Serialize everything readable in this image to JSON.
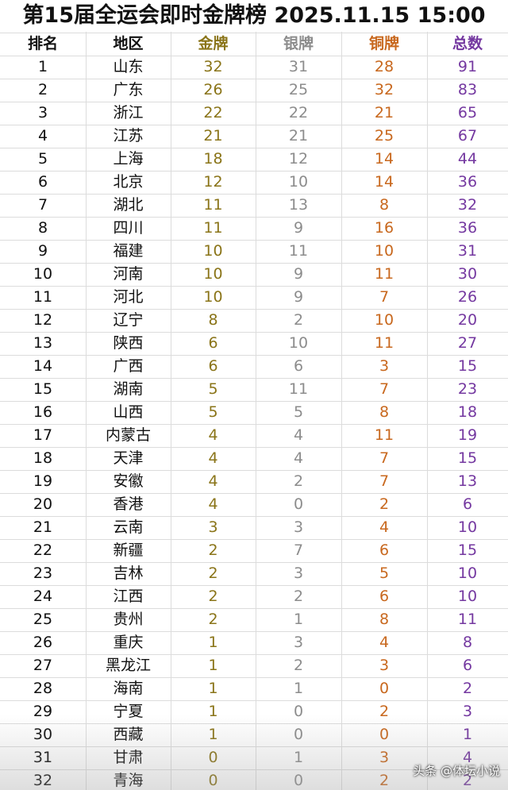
{
  "title": "第15届全运会即时金牌榜 2025.11.15 15:00",
  "table": {
    "headers": [
      "排名",
      "地区",
      "金牌",
      "银牌",
      "铜牌",
      "总数"
    ],
    "rows": [
      [
        1,
        "山东",
        32,
        31,
        28,
        91
      ],
      [
        2,
        "广东",
        26,
        25,
        32,
        83
      ],
      [
        3,
        "浙江",
        22,
        22,
        21,
        65
      ],
      [
        4,
        "江苏",
        21,
        21,
        25,
        67
      ],
      [
        5,
        "上海",
        18,
        12,
        14,
        44
      ],
      [
        6,
        "北京",
        12,
        10,
        14,
        36
      ],
      [
        7,
        "湖北",
        11,
        13,
        8,
        32
      ],
      [
        8,
        "四川",
        11,
        9,
        16,
        36
      ],
      [
        9,
        "福建",
        10,
        11,
        10,
        31
      ],
      [
        10,
        "河南",
        10,
        9,
        11,
        30
      ],
      [
        11,
        "河北",
        10,
        9,
        7,
        26
      ],
      [
        12,
        "辽宁",
        8,
        2,
        10,
        20
      ],
      [
        13,
        "陕西",
        6,
        10,
        11,
        27
      ],
      [
        14,
        "广西",
        6,
        6,
        3,
        15
      ],
      [
        15,
        "湖南",
        5,
        11,
        7,
        23
      ],
      [
        16,
        "山西",
        5,
        5,
        8,
        18
      ],
      [
        17,
        "内蒙古",
        4,
        4,
        11,
        19
      ],
      [
        18,
        "天津",
        4,
        4,
        7,
        15
      ],
      [
        19,
        "安徽",
        4,
        2,
        7,
        13
      ],
      [
        20,
        "香港",
        4,
        0,
        2,
        6
      ],
      [
        21,
        "云南",
        3,
        3,
        4,
        10
      ],
      [
        22,
        "新疆",
        2,
        7,
        6,
        15
      ],
      [
        23,
        "吉林",
        2,
        3,
        5,
        10
      ],
      [
        24,
        "江西",
        2,
        2,
        6,
        10
      ],
      [
        25,
        "贵州",
        2,
        1,
        8,
        11
      ],
      [
        26,
        "重庆",
        1,
        3,
        4,
        8
      ],
      [
        27,
        "黑龙江",
        1,
        2,
        3,
        6
      ],
      [
        28,
        "海南",
        1,
        1,
        0,
        2
      ],
      [
        29,
        "宁夏",
        1,
        0,
        2,
        3
      ],
      [
        30,
        "西藏",
        1,
        0,
        0,
        1
      ],
      [
        31,
        "甘肃",
        0,
        1,
        3,
        4
      ],
      [
        32,
        "青海",
        0,
        0,
        2,
        2
      ]
    ]
  },
  "watermark": "头条 @体坛小说"
}
